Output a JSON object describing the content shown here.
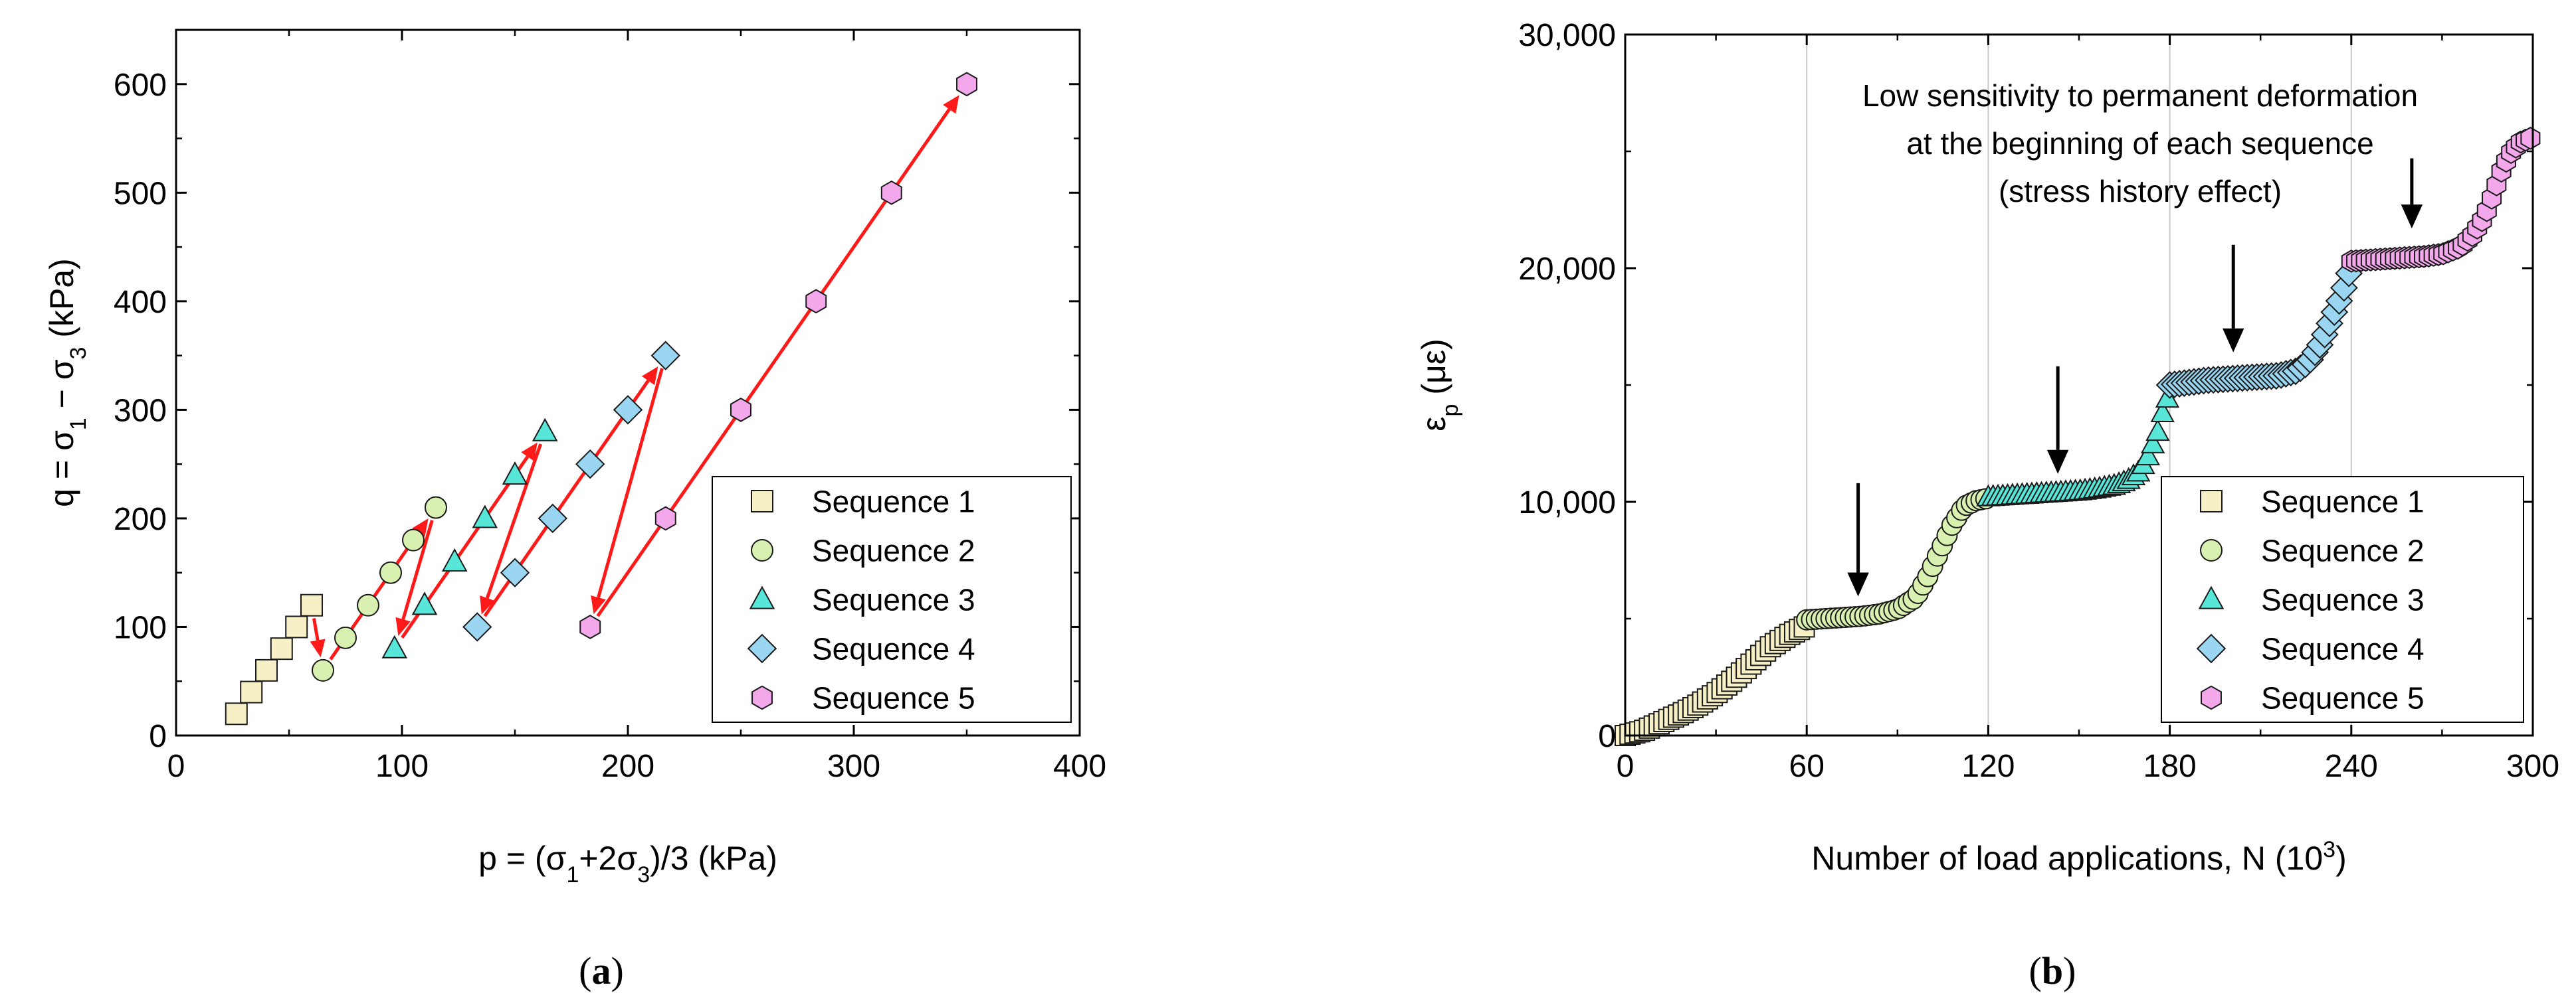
{
  "colors": {
    "seq1": "#f7f0c6",
    "seq2": "#d8f0b0",
    "seq3": "#58e6d8",
    "seq4": "#9ad6f2",
    "seq5": "#f3a8ec",
    "arrow": "#ff1a1a",
    "grid": "#c8c8c8"
  },
  "panels": {
    "a": {
      "label_open": "(",
      "letter": "a",
      "label_close": ")"
    },
    "b": {
      "label_open": "(",
      "letter": "b",
      "label_close": ")"
    }
  },
  "chart_data": [
    {
      "type": "scatter",
      "id": "a",
      "title": "",
      "xlabel": "p = (σ1+2σ3)/3 (kPa)",
      "xlabel_parts": [
        "p = (σ",
        "1",
        "+2σ",
        "3",
        ")/3 (kPa)"
      ],
      "ylabel": "q = σ1 − σ3 (kPa)",
      "ylabel_parts": [
        "q = σ",
        "1",
        " − σ",
        "3",
        " (kPa)"
      ],
      "xlim": [
        0,
        400
      ],
      "ylim": [
        0,
        650
      ],
      "xticks": [
        0,
        100,
        200,
        300,
        400
      ],
      "xtick_labels": [
        "0",
        "100",
        "200",
        "300",
        "400"
      ],
      "yticks": [
        0,
        100,
        200,
        300,
        400,
        500,
        600
      ],
      "ytick_labels": [
        "0",
        "100",
        "200",
        "300",
        "400",
        "500",
        "600"
      ],
      "grid": false,
      "legend": "bottom-right",
      "series": [
        {
          "name": "Sequence 1",
          "marker": "square",
          "points": [
            [
              26.7,
              20
            ],
            [
              33.3,
              40
            ],
            [
              40,
              60
            ],
            [
              46.7,
              80
            ],
            [
              53.3,
              100
            ],
            [
              60,
              120
            ]
          ]
        },
        {
          "name": "Sequence 2",
          "marker": "circle",
          "points": [
            [
              65,
              60
            ],
            [
              75,
              90
            ],
            [
              85,
              120
            ],
            [
              95,
              150
            ],
            [
              105,
              180
            ],
            [
              115,
              210
            ]
          ]
        },
        {
          "name": "Sequence 3",
          "marker": "triangle",
          "points": [
            [
              96.7,
              80
            ],
            [
              110,
              120
            ],
            [
              123.3,
              160
            ],
            [
              136.7,
              200
            ],
            [
              150,
              240
            ],
            [
              163.3,
              280
            ]
          ]
        },
        {
          "name": "Sequence 4",
          "marker": "diamond",
          "points": [
            [
              133.3,
              100
            ],
            [
              150,
              150
            ],
            [
              166.7,
              200
            ],
            [
              183.3,
              250
            ],
            [
              200,
              300
            ],
            [
              216.7,
              350
            ]
          ]
        },
        {
          "name": "Sequence 5",
          "marker": "hexagon",
          "points": [
            [
              183.3,
              100
            ],
            [
              216.7,
              200
            ],
            [
              250,
              300
            ],
            [
              283.3,
              400
            ],
            [
              316.7,
              500
            ],
            [
              350,
              600
            ]
          ]
        }
      ],
      "arrows": [
        {
          "from": [
            26.7,
            20
          ],
          "to": [
            60,
            120
          ]
        },
        {
          "from": [
            60,
            120
          ],
          "to": [
            65,
            60
          ]
        },
        {
          "from": [
            65,
            60
          ],
          "to": [
            115,
            210
          ]
        },
        {
          "from": [
            115,
            210
          ],
          "to": [
            96.7,
            80
          ]
        },
        {
          "from": [
            96.7,
            80
          ],
          "to": [
            163.3,
            280
          ]
        },
        {
          "from": [
            163.3,
            280
          ],
          "to": [
            133.3,
            100
          ]
        },
        {
          "from": [
            133.3,
            100
          ],
          "to": [
            216.7,
            350
          ]
        },
        {
          "from": [
            216.7,
            350
          ],
          "to": [
            183.3,
            100
          ]
        },
        {
          "from": [
            183.3,
            100
          ],
          "to": [
            350,
            600
          ]
        }
      ]
    },
    {
      "type": "scatter",
      "id": "b",
      "title": "",
      "xlabel": "Number of load applications, N (10³)",
      "xlabel_parts": [
        "Number of load applications, N (10",
        "3",
        ")"
      ],
      "ylabel": "εp (με)",
      "ylabel_parts": [
        "ε",
        "p",
        " (με)"
      ],
      "xlim": [
        0,
        300
      ],
      "ylim": [
        0,
        30000
      ],
      "xticks": [
        0,
        60,
        120,
        180,
        240,
        300
      ],
      "xtick_labels": [
        "0",
        "60",
        "120",
        "180",
        "240",
        "300"
      ],
      "yticks": [
        0,
        10000,
        20000,
        30000
      ],
      "ytick_labels": [
        "0",
        "10,000",
        "20,000",
        "30,000"
      ],
      "grid": "vertical",
      "legend": "bottom-right",
      "annotation": [
        "Low sensitivity to permanent deformation",
        "at the beginning of each sequence",
        "(stress history effect)"
      ],
      "down_arrows": [
        {
          "x": 77,
          "y_top": 10800,
          "y_bottom": 5950
        },
        {
          "x": 143,
          "y_top": 15800,
          "y_bottom": 11200
        },
        {
          "x": 201,
          "y_top": 21000,
          "y_bottom": 16400
        },
        {
          "x": 260,
          "y_top": 24700,
          "y_bottom": 21700
        }
      ],
      "series": [
        {
          "name": "Sequence 1",
          "marker": "square",
          "range": [
            0,
            60
          ],
          "anchors": [
            [
              0,
              0
            ],
            [
              6,
              200
            ],
            [
              12,
              550
            ],
            [
              18,
              900
            ],
            [
              24,
              1300
            ],
            [
              30,
              1800
            ],
            [
              36,
              2400
            ],
            [
              42,
              3100
            ],
            [
              48,
              3800
            ],
            [
              54,
              4300
            ],
            [
              60,
              4700
            ]
          ]
        },
        {
          "name": "Sequence 2",
          "marker": "circle",
          "range": [
            60,
            120
          ],
          "anchors": [
            [
              60,
              4950
            ],
            [
              66,
              5000
            ],
            [
              72,
              5050
            ],
            [
              78,
              5100
            ],
            [
              84,
              5200
            ],
            [
              90,
              5400
            ],
            [
              96,
              5900
            ],
            [
              100,
              6800
            ],
            [
              104,
              7900
            ],
            [
              108,
              9000
            ],
            [
              112,
              9800
            ],
            [
              116,
              10050
            ],
            [
              120,
              10150
            ]
          ]
        },
        {
          "name": "Sequence 3",
          "marker": "triangle",
          "range": [
            120,
            180
          ],
          "anchors": [
            [
              120,
              10200
            ],
            [
              126,
              10250
            ],
            [
              132,
              10300
            ],
            [
              138,
              10350
            ],
            [
              144,
              10400
            ],
            [
              150,
              10450
            ],
            [
              156,
              10550
            ],
            [
              162,
              10700
            ],
            [
              166,
              10900
            ],
            [
              170,
              11300
            ],
            [
              173,
              12000
            ],
            [
              176,
              13000
            ],
            [
              178,
              14000
            ],
            [
              180,
              14700
            ]
          ]
        },
        {
          "name": "Sequence 4",
          "marker": "diamond",
          "range": [
            180,
            240
          ],
          "anchors": [
            [
              180,
              15000
            ],
            [
              186,
              15100
            ],
            [
              192,
              15200
            ],
            [
              198,
              15250
            ],
            [
              204,
              15300
            ],
            [
              210,
              15350
            ],
            [
              216,
              15400
            ],
            [
              222,
              15600
            ],
            [
              226,
              16000
            ],
            [
              230,
              16800
            ],
            [
              233,
              17700
            ],
            [
              236,
              18600
            ],
            [
              238,
              19300
            ],
            [
              240,
              20100
            ]
          ]
        },
        {
          "name": "Sequence 5",
          "marker": "hexagon",
          "range": [
            240,
            300
          ],
          "anchors": [
            [
              240,
              20300
            ],
            [
              246,
              20350
            ],
            [
              252,
              20400
            ],
            [
              258,
              20450
            ],
            [
              264,
              20500
            ],
            [
              270,
              20600
            ],
            [
              276,
              20900
            ],
            [
              280,
              21400
            ],
            [
              284,
              22200
            ],
            [
              287,
              23200
            ],
            [
              290,
              24300
            ],
            [
              293,
              25000
            ],
            [
              296,
              25400
            ],
            [
              300,
              25600
            ]
          ]
        }
      ]
    }
  ]
}
